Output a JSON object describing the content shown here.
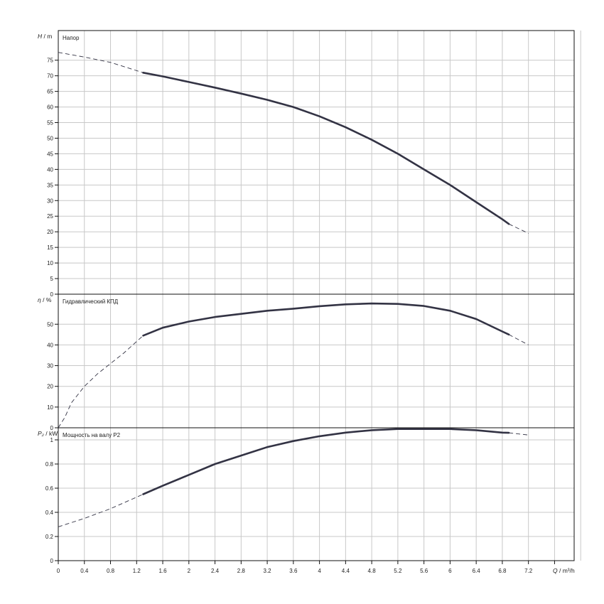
{
  "chart_data": {
    "type": "line",
    "x": {
      "label": "Q / m³/h",
      "label_parts": {
        "symbol": "Q",
        "unit": "/ m³/h"
      },
      "range": [
        0,
        7.9
      ],
      "ticks": [
        0,
        0.4,
        0.8,
        1.2,
        1.6,
        2,
        2.4,
        2.8,
        3.2,
        3.6,
        4,
        4.4,
        4.8,
        5.2,
        5.6,
        6,
        6.4,
        6.8,
        7.2
      ],
      "tick_labels": [
        "0",
        "0.4",
        "0.8",
        "1.2",
        "1.6",
        "2",
        "2.4",
        "2.8",
        "3.2",
        "3.6",
        "4",
        "4.4",
        "4.8",
        "5.2",
        "5.6",
        "6",
        "6.4",
        "6.8",
        "7.2"
      ],
      "grid_step": 0.4
    },
    "panels": [
      {
        "id": "head",
        "title": "Напор",
        "ylabel": "H / m",
        "ylabel_parts": {
          "symbol": "H",
          "unit": "/ m"
        },
        "ylim": [
          0,
          84.5
        ],
        "yticks": [
          0,
          5,
          10,
          15,
          20,
          25,
          30,
          35,
          40,
          45,
          50,
          55,
          60,
          65,
          70,
          75
        ],
        "ytick_labels": [
          "0",
          "5",
          "10",
          "15",
          "20",
          "25",
          "30",
          "35",
          "40",
          "45",
          "50",
          "55",
          "60",
          "65",
          "70",
          "75"
        ],
        "grid": true,
        "series": {
          "solid": [
            [
              1.3,
              71
            ],
            [
              1.6,
              69.8
            ],
            [
              2,
              68
            ],
            [
              2.4,
              66.2
            ],
            [
              2.8,
              64.3
            ],
            [
              3.2,
              62.3
            ],
            [
              3.6,
              60
            ],
            [
              4,
              57
            ],
            [
              4.4,
              53.5
            ],
            [
              4.8,
              49.5
            ],
            [
              5.2,
              45
            ],
            [
              5.6,
              40
            ],
            [
              6,
              35
            ],
            [
              6.4,
              29.5
            ],
            [
              6.8,
              24
            ],
            [
              6.9,
              22.5
            ]
          ],
          "dashed_start": [
            [
              0,
              77.5
            ],
            [
              0.4,
              76
            ],
            [
              0.8,
              74.3
            ],
            [
              1.3,
              71
            ]
          ],
          "dashed_end": [
            [
              6.9,
              22.5
            ],
            [
              7.2,
              19.5
            ]
          ]
        }
      },
      {
        "id": "efficiency",
        "title": "Гидравлический КПД",
        "ylabel": "η / %",
        "ylabel_parts": {
          "symbol": "η",
          "unit": "/ %"
        },
        "ylim": [
          0,
          64.5
        ],
        "yticks": [
          0,
          10,
          20,
          30,
          40,
          50
        ],
        "ytick_labels": [
          "0",
          "10",
          "20",
          "30",
          "40",
          "50"
        ],
        "grid": true,
        "series": {
          "solid": [
            [
              1.3,
              44.5
            ],
            [
              1.6,
              48.3
            ],
            [
              2,
              51.3
            ],
            [
              2.4,
              53.5
            ],
            [
              2.8,
              55
            ],
            [
              3.2,
              56.5
            ],
            [
              3.6,
              57.5
            ],
            [
              4,
              58.7
            ],
            [
              4.4,
              59.6
            ],
            [
              4.8,
              60
            ],
            [
              5.2,
              59.8
            ],
            [
              5.6,
              58.8
            ],
            [
              6,
              56.5
            ],
            [
              6.4,
              52.5
            ],
            [
              6.8,
              46.5
            ],
            [
              6.9,
              45
            ]
          ],
          "dashed_start": [
            [
              0,
              0
            ],
            [
              0.1,
              5
            ],
            [
              0.2,
              12
            ],
            [
              0.4,
              20
            ],
            [
              0.6,
              26
            ],
            [
              0.8,
              31
            ],
            [
              1.0,
              36
            ],
            [
              1.3,
              44.5
            ]
          ],
          "dashed_end": [
            [
              6.9,
              45
            ],
            [
              7.2,
              40
            ]
          ]
        }
      },
      {
        "id": "power",
        "title": "Мощность на валу P2",
        "ylabel": "P₂ / kW",
        "ylabel_parts": {
          "symbol": "P₂",
          "unit": "/ kW"
        },
        "ylim": [
          0,
          1.1
        ],
        "yticks": [
          0,
          0.2,
          0.4,
          0.6,
          0.8,
          1
        ],
        "ytick_labels": [
          "0",
          "0.2",
          "0.4",
          "0.6",
          "0.8",
          "1"
        ],
        "grid": true,
        "series": {
          "solid": [
            [
              1.3,
              0.55
            ],
            [
              1.6,
              0.62
            ],
            [
              2,
              0.71
            ],
            [
              2.4,
              0.8
            ],
            [
              2.8,
              0.87
            ],
            [
              3.2,
              0.94
            ],
            [
              3.6,
              0.99
            ],
            [
              4,
              1.03
            ],
            [
              4.4,
              1.06
            ],
            [
              4.8,
              1.08
            ],
            [
              5.2,
              1.09
            ],
            [
              5.6,
              1.09
            ],
            [
              6,
              1.09
            ],
            [
              6.4,
              1.08
            ],
            [
              6.8,
              1.06
            ],
            [
              6.9,
              1.058
            ]
          ],
          "dashed_start": [
            [
              0,
              0.28
            ],
            [
              0.4,
              0.35
            ],
            [
              0.8,
              0.43
            ],
            [
              1.3,
              0.55
            ]
          ],
          "dashed_end": [
            [
              6.9,
              1.058
            ],
            [
              7.2,
              1.04
            ]
          ]
        }
      }
    ],
    "style": {
      "curve_color": "#333344",
      "grid_color": "#c8c8c8",
      "frame_color": "#111111"
    }
  }
}
